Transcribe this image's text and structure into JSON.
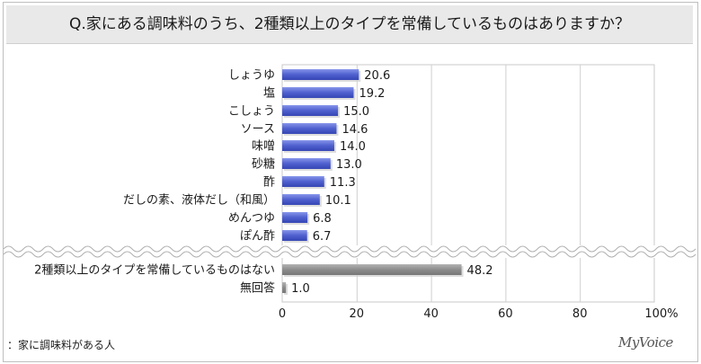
{
  "title": "Q.家にある調味料のうち、2種類以上のタイプを常備しているものはありますか？",
  "footnote": "：家に調味料がある人",
  "brand": "MyVoice",
  "chart_data": {
    "type": "bar",
    "orientation": "horizontal",
    "categories": [
      "しょうゆ",
      "塩",
      "こしょう",
      "ソース",
      "味噌",
      "砂糖",
      "酢",
      "だしの素、液体だし（和風）",
      "めんつゆ",
      "ぽん酢",
      "2種類以上のタイプを常備しているものはない",
      "無回答"
    ],
    "values": [
      20.6,
      19.2,
      15.0,
      14.6,
      14.0,
      13.0,
      11.3,
      10.1,
      6.8,
      6.7,
      48.2,
      1.0
    ],
    "value_labels": [
      "20.6",
      "19.2",
      "15.0",
      "14.6",
      "14.0",
      "13.0",
      "11.3",
      "10.1",
      "6.8",
      "6.7",
      "48.2",
      "1.0"
    ],
    "groups": [
      {
        "start": 0,
        "end": 9,
        "color": "#5566cc"
      },
      {
        "start": 10,
        "end": 11,
        "color": "#8c8c8c"
      }
    ],
    "x_ticks": [
      "0",
      "20",
      "40",
      "60",
      "80",
      "100%"
    ],
    "xlim": [
      0,
      100
    ],
    "grid": true,
    "axis_break": true
  }
}
